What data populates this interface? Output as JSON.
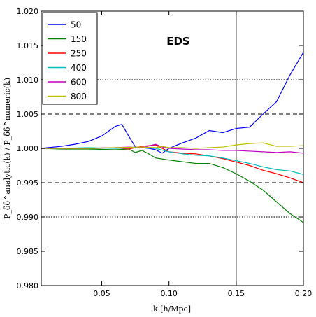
{
  "chart_data": {
    "type": "line",
    "title": "",
    "annotation": "EDS",
    "xlabel": "k [h/Mpc]",
    "ylabel": "P_δδ^analytic(k) / P_δδ^numeric(k)",
    "xlim": [
      0.005,
      0.2
    ],
    "ylim": [
      0.98,
      1.02
    ],
    "xticks": [
      "0.05",
      "0.10",
      "0.15",
      "0.20"
    ],
    "yticks": [
      "0.980",
      "0.985",
      "0.990",
      "0.995",
      "1.000",
      "1.005",
      "1.010",
      "1.015",
      "1.020"
    ],
    "legend_position": "top-left",
    "reference_lines": {
      "dotted": [
        0.99,
        1.01
      ],
      "dashed": [
        0.995,
        1.005
      ],
      "vertical": [
        0.15
      ]
    },
    "series": [
      {
        "name": "50",
        "color": "#0000ff",
        "x": [
          0.005,
          0.01,
          0.02,
          0.03,
          0.04,
          0.05,
          0.055,
          0.06,
          0.065,
          0.07,
          0.075,
          0.08,
          0.085,
          0.09,
          0.095,
          0.1,
          0.11,
          0.12,
          0.13,
          0.14,
          0.15,
          0.16,
          0.17,
          0.18,
          0.19,
          0.2
        ],
        "y": [
          1.0,
          1.0001,
          1.0003,
          1.0006,
          1.001,
          1.0018,
          1.0025,
          1.0032,
          1.0035,
          1.0018,
          1.0002,
          1.0001,
          1.0,
          0.9998,
          0.9993,
          1.0,
          1.0008,
          1.0015,
          1.0026,
          1.0023,
          1.0029,
          1.0031,
          1.005,
          1.0068,
          1.0107,
          1.014
        ]
      },
      {
        "name": "150",
        "color": "#008000",
        "x": [
          0.005,
          0.02,
          0.04,
          0.06,
          0.07,
          0.075,
          0.08,
          0.085,
          0.09,
          0.1,
          0.12,
          0.13,
          0.14,
          0.15,
          0.16,
          0.17,
          0.18,
          0.19,
          0.2
        ],
        "y": [
          1.0,
          0.9999,
          0.9999,
          0.9998,
          0.9999,
          0.9994,
          0.9997,
          0.9992,
          0.9986,
          0.9983,
          0.9978,
          0.9978,
          0.9972,
          0.9963,
          0.9952,
          0.9939,
          0.9922,
          0.9905,
          0.9892
        ]
      },
      {
        "name": "250",
        "color": "#ff0000",
        "x": [
          0.005,
          0.02,
          0.04,
          0.06,
          0.07,
          0.08,
          0.085,
          0.09,
          0.1,
          0.11,
          0.12,
          0.13,
          0.14,
          0.15,
          0.16,
          0.17,
          0.18,
          0.19,
          0.2
        ],
        "y": [
          1.0,
          1.0,
          1.0,
          1.0001,
          0.9999,
          1.0003,
          1.0004,
          1.0005,
          0.9995,
          0.9993,
          0.9992,
          0.9989,
          0.9985,
          0.998,
          0.9975,
          0.9968,
          0.9963,
          0.9957,
          0.995
        ]
      },
      {
        "name": "400",
        "color": "#00bfbf",
        "x": [
          0.005,
          0.02,
          0.04,
          0.06,
          0.08,
          0.09,
          0.1,
          0.11,
          0.12,
          0.13,
          0.14,
          0.15,
          0.16,
          0.17,
          0.18,
          0.19,
          0.2
        ],
        "y": [
          1.0,
          1.0,
          1.0001,
          1.0,
          1.0001,
          1.0,
          0.9995,
          0.9992,
          0.999,
          0.9989,
          0.9986,
          0.9982,
          0.9978,
          0.9973,
          0.9969,
          0.9967,
          0.9962
        ]
      },
      {
        "name": "600",
        "color": "#bf00bf",
        "x": [
          0.005,
          0.02,
          0.04,
          0.06,
          0.07,
          0.08,
          0.09,
          0.095,
          0.1,
          0.11,
          0.12,
          0.13,
          0.14,
          0.15,
          0.16,
          0.17,
          0.18,
          0.19,
          0.2
        ],
        "y": [
          1.0,
          1.0,
          1.0,
          1.0001,
          1.0002,
          1.0001,
          1.0006,
          1.0002,
          1.0,
          0.9999,
          0.9998,
          0.9998,
          0.9997,
          0.9997,
          0.9996,
          0.9995,
          0.9994,
          0.9995,
          0.9993
        ]
      },
      {
        "name": "800",
        "color": "#bfbf00",
        "x": [
          0.005,
          0.02,
          0.04,
          0.06,
          0.08,
          0.09,
          0.095,
          0.1,
          0.11,
          0.12,
          0.13,
          0.14,
          0.15,
          0.16,
          0.17,
          0.18,
          0.19,
          0.2
        ],
        "y": [
          1.0,
          1.0,
          1.0,
          1.0001,
          1.0002,
          1.0001,
          1.0003,
          1.0001,
          1.0001,
          1.0,
          1.0001,
          1.0002,
          1.0005,
          1.0007,
          1.0008,
          1.0003,
          1.0003,
          1.0004
        ]
      }
    ]
  }
}
